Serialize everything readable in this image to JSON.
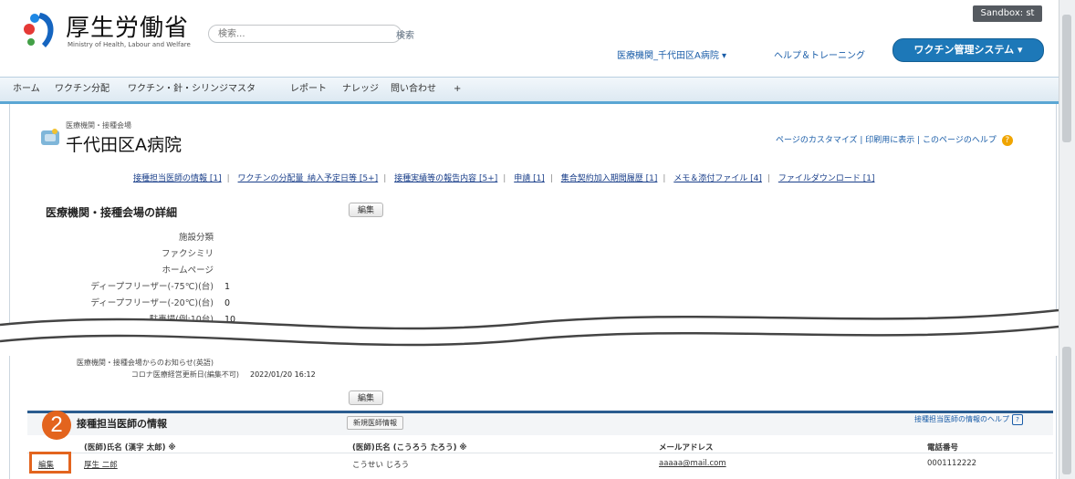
{
  "header": {
    "logo_title": "厚生労働省",
    "logo_sub": "Ministry of Health, Labour and Welfare",
    "search_placeholder": "検索...",
    "search_button": "検索",
    "sandbox": "Sandbox: st",
    "user_menu": "医療機関_千代田区A病院 ▾",
    "help_link": "ヘルプ＆トレーニング",
    "app_menu": "ワクチン管理システム ▾"
  },
  "tabs": [
    "ホーム",
    "ワクチン分配",
    "ワクチン・針・シリンジマスタ",
    "レポート",
    "ナレッジ",
    "問い合わせ",
    "+"
  ],
  "page": {
    "subtitle": "医療機関・接種会場",
    "title": "千代田区A病院",
    "top_links": "ページのカスタマイズ | 印刷用に表示 | このページのヘルプ",
    "help_icon": "?"
  },
  "related_links": [
    "接種担当医師の情報 [1]",
    "ワクチンの分配量_納入予定日等 [5+]",
    "接種実績等の報告内容 [5+]",
    "申請 [1]",
    "集合契約加入期間履歴 [1]",
    "メモ＆添付ファイル [4]",
    "ファイルダウンロード [1]"
  ],
  "detail": {
    "title": "医療機関・接種会場の詳細",
    "edit_button": "編集",
    "fields": [
      {
        "label": "施設分類",
        "value": ""
      },
      {
        "label": "ファクシミリ",
        "value": ""
      },
      {
        "label": "ホームページ",
        "value": ""
      },
      {
        "label": "ディープフリーザー(-75℃)(台)",
        "value": "1"
      },
      {
        "label": "ディープフリーザー(-20℃)(台)",
        "value": "0"
      },
      {
        "label": "駐車場(例:10台)",
        "value": "10"
      }
    ],
    "lower_fields": [
      {
        "label": "医療機関・接種会場からのお知らせ(英語)",
        "value": ""
      },
      {
        "label": "コロナ医療経営更新日(編集不可)",
        "value": "2022/01/20 16:12"
      }
    ],
    "edit_button_2": "編集"
  },
  "doctor_section": {
    "title": "接種担当医師の情報",
    "new_button": "新規医師情報",
    "help": "接種担当医師の情報のヘルプ",
    "help_icon": "?",
    "columns": [
      "(医師)氏名 (漢字 太郎) ※",
      "(医師)氏名 (こうろう たろう) ※",
      "メールアドレス",
      "電話番号"
    ],
    "rows": [
      {
        "action": "編集",
        "name_kanji": "厚生 二郎",
        "name_kana": "こうせい じろう",
        "email": "aaaaa@mail.com",
        "phone": "0001112222"
      }
    ]
  },
  "annotation": {
    "step_number": "2"
  }
}
